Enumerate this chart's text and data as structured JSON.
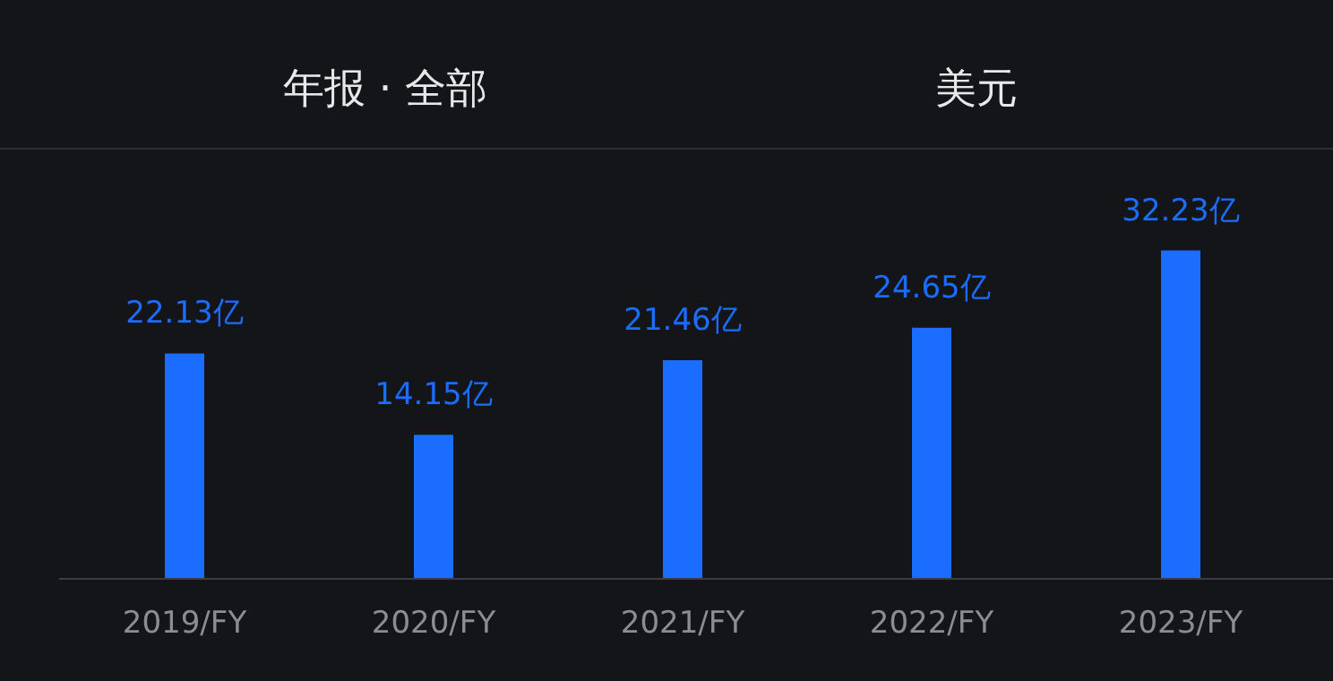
{
  "chart_data": {
    "type": "bar",
    "categories": [
      "2019/FY",
      "2020/FY",
      "2021/FY",
      "2022/FY",
      "2023/FY"
    ],
    "values": [
      22.13,
      14.15,
      21.46,
      24.65,
      32.23
    ],
    "value_labels": [
      "22.13亿",
      "14.15亿",
      "21.46亿",
      "24.65亿",
      "32.23亿"
    ],
    "color": "#1a6dff",
    "annotations": [
      "年报 · 全部",
      "美元"
    ]
  }
}
